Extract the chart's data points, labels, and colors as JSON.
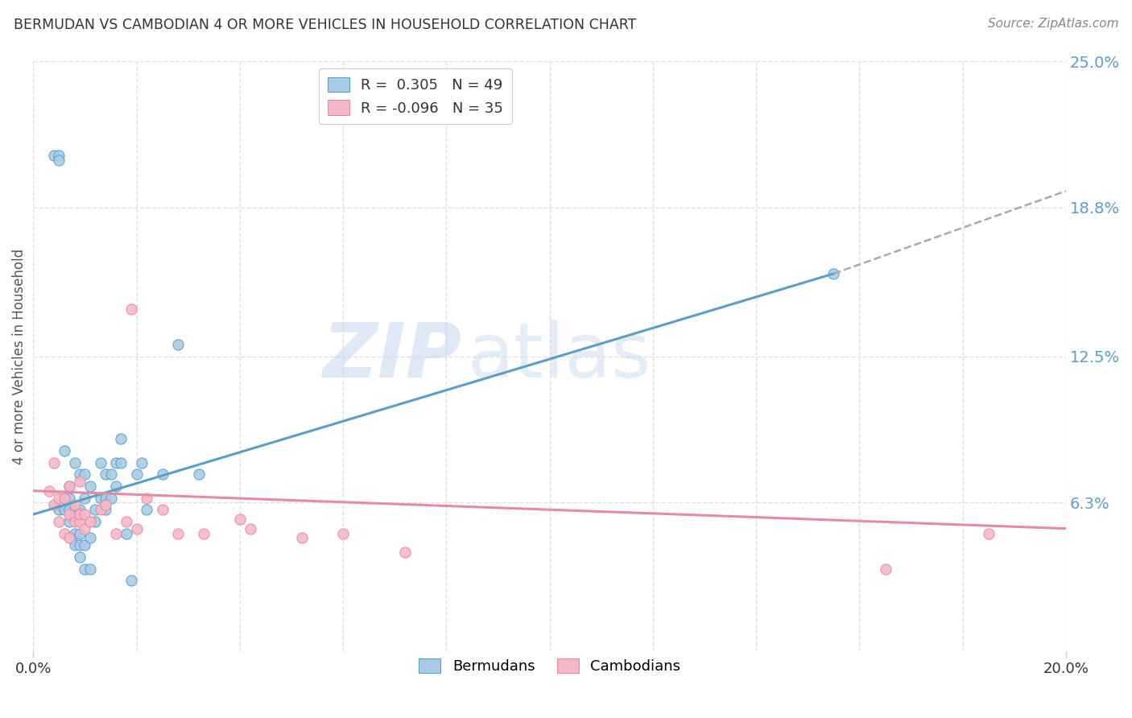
{
  "title": "BERMUDAN VS CAMBODIAN 4 OR MORE VEHICLES IN HOUSEHOLD CORRELATION CHART",
  "source": "Source: ZipAtlas.com",
  "ylabel": "4 or more Vehicles in Household",
  "watermark_zip": "ZIP",
  "watermark_atlas": "atlas",
  "xlim": [
    0.0,
    0.2
  ],
  "ylim": [
    0.0,
    0.25
  ],
  "yticks_right": [
    0.063,
    0.125,
    0.188,
    0.25
  ],
  "ytick_labels_right": [
    "6.3%",
    "12.5%",
    "18.8%",
    "25.0%"
  ],
  "xtick_labels": [
    "0.0%",
    "20.0%"
  ],
  "legend_r1": "R =  0.305   N = 49",
  "legend_r2": "R = -0.096   N = 35",
  "scatter_color1": "#a8cce8",
  "scatter_color2": "#f4b8c8",
  "edge_color1": "#5b9fc8",
  "edge_color2": "#e88aa0",
  "line_color1": "#5b9fc8",
  "line_color2": "#e88aa0",
  "line_color1_legend": "#5b9fc8",
  "line_color2_legend": "#e88aa0",
  "dash_color": "#aaaaaa",
  "background_color": "#ffffff",
  "grid_color": "#e0e0e0",
  "title_color": "#333333",
  "right_tick_color": "#5b9fc8",
  "source_color": "#888888",
  "bermudans_x": [
    0.004,
    0.005,
    0.005,
    0.005,
    0.006,
    0.006,
    0.006,
    0.007,
    0.007,
    0.007,
    0.007,
    0.008,
    0.008,
    0.008,
    0.008,
    0.009,
    0.009,
    0.009,
    0.009,
    0.009,
    0.01,
    0.01,
    0.01,
    0.01,
    0.011,
    0.011,
    0.011,
    0.012,
    0.012,
    0.013,
    0.013,
    0.014,
    0.014,
    0.014,
    0.015,
    0.015,
    0.016,
    0.016,
    0.017,
    0.017,
    0.018,
    0.019,
    0.02,
    0.021,
    0.022,
    0.025,
    0.028,
    0.032,
    0.155
  ],
  "bermudans_y": [
    0.21,
    0.21,
    0.208,
    0.06,
    0.085,
    0.065,
    0.06,
    0.065,
    0.055,
    0.06,
    0.07,
    0.045,
    0.05,
    0.06,
    0.08,
    0.04,
    0.045,
    0.05,
    0.06,
    0.075,
    0.035,
    0.045,
    0.065,
    0.075,
    0.035,
    0.048,
    0.07,
    0.055,
    0.06,
    0.065,
    0.08,
    0.06,
    0.065,
    0.075,
    0.065,
    0.075,
    0.07,
    0.08,
    0.08,
    0.09,
    0.05,
    0.03,
    0.075,
    0.08,
    0.06,
    0.075,
    0.13,
    0.075,
    0.16
  ],
  "cambodians_x": [
    0.003,
    0.004,
    0.004,
    0.005,
    0.005,
    0.006,
    0.006,
    0.007,
    0.007,
    0.007,
    0.008,
    0.008,
    0.009,
    0.009,
    0.009,
    0.01,
    0.01,
    0.011,
    0.013,
    0.014,
    0.016,
    0.018,
    0.019,
    0.02,
    0.022,
    0.025,
    0.028,
    0.033,
    0.04,
    0.042,
    0.052,
    0.06,
    0.072,
    0.165,
    0.185
  ],
  "cambodians_y": [
    0.068,
    0.062,
    0.08,
    0.055,
    0.065,
    0.05,
    0.065,
    0.048,
    0.058,
    0.07,
    0.055,
    0.062,
    0.055,
    0.058,
    0.072,
    0.052,
    0.058,
    0.055,
    0.06,
    0.062,
    0.05,
    0.055,
    0.145,
    0.052,
    0.065,
    0.06,
    0.05,
    0.05,
    0.056,
    0.052,
    0.048,
    0.05,
    0.042,
    0.035,
    0.05
  ],
  "trendline_b_x0": 0.0,
  "trendline_b_y0": 0.058,
  "trendline_b_x1": 0.155,
  "trendline_b_y1": 0.16,
  "trendline_b_dash_x1": 0.2,
  "trendline_b_dash_y1": 0.195,
  "trendline_c_x0": 0.0,
  "trendline_c_y0": 0.068,
  "trendline_c_x1": 0.2,
  "trendline_c_y1": 0.052
}
